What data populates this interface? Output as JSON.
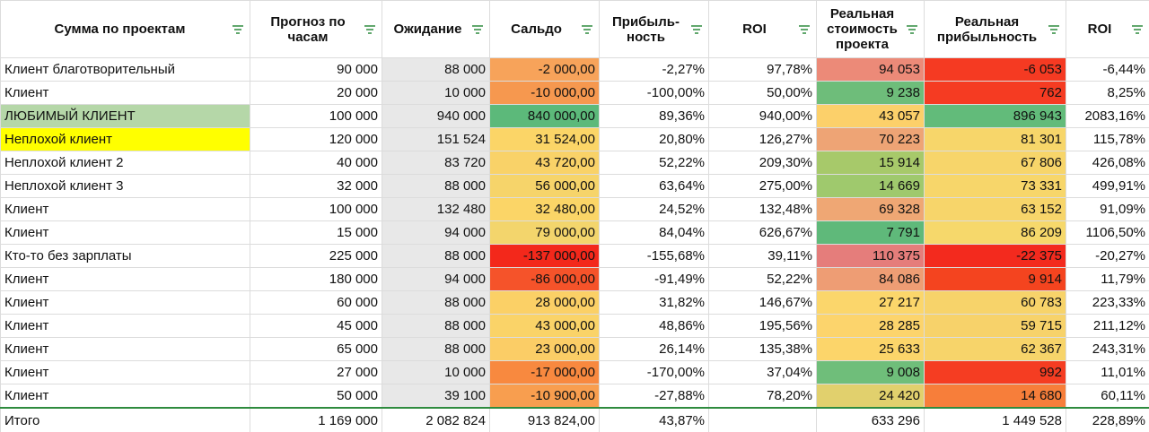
{
  "table": {
    "header": [
      "Сумма по проектам",
      "Прогноз по\nчасам",
      "Ожидание",
      "Сальдо",
      "Прибыль-\nность",
      "ROI",
      "Реальная\nстоимость\nпроекта",
      "Реальная\nприбыльность",
      "ROI"
    ],
    "rows": [
      [
        "Клиент благотворительный",
        "90 000",
        "88 000",
        "-2 000,00",
        "-2,27%",
        "97,78%",
        "94 053",
        "-6 053",
        "-6,44%"
      ],
      [
        "Клиент",
        "20 000",
        "10 000",
        "-10 000,00",
        "-100,00%",
        "50,00%",
        "9 238",
        "762",
        "8,25%"
      ],
      [
        "ЛЮБИМЫЙ КЛИЕНТ",
        "100 000",
        "940 000",
        "840 000,00",
        "89,36%",
        "940,00%",
        "43 057",
        "896 943",
        "2083,16%"
      ],
      [
        "Неплохой клиент",
        "120 000",
        "151 524",
        "31 524,00",
        "20,80%",
        "126,27%",
        "70 223",
        "81 301",
        "115,78%"
      ],
      [
        "Неплохой клиент 2",
        "40 000",
        "83 720",
        "43 720,00",
        "52,22%",
        "209,30%",
        "15 914",
        "67 806",
        "426,08%"
      ],
      [
        "Неплохой клиент 3",
        "32 000",
        "88 000",
        "56 000,00",
        "63,64%",
        "275,00%",
        "14 669",
        "73 331",
        "499,91%"
      ],
      [
        "Клиент",
        "100 000",
        "132 480",
        "32 480,00",
        "24,52%",
        "132,48%",
        "69 328",
        "63 152",
        "91,09%"
      ],
      [
        "Клиент",
        "15 000",
        "94 000",
        "79 000,00",
        "84,04%",
        "626,67%",
        "7 791",
        "86 209",
        "1106,50%"
      ],
      [
        "Кто-то без зарплаты",
        "225 000",
        "88 000",
        "-137 000,00",
        "-155,68%",
        "39,11%",
        "110 375",
        "-22 375",
        "-20,27%"
      ],
      [
        "Клиент",
        "180 000",
        "94 000",
        "-86 000,00",
        "-91,49%",
        "52,22%",
        "84 086",
        "9 914",
        "11,79%"
      ],
      [
        "Клиент",
        "60 000",
        "88 000",
        "28 000,00",
        "31,82%",
        "146,67%",
        "27 217",
        "60 783",
        "223,33%"
      ],
      [
        "Клиент",
        "45 000",
        "88 000",
        "43 000,00",
        "48,86%",
        "195,56%",
        "28 285",
        "59 715",
        "211,12%"
      ],
      [
        "Клиент",
        "65 000",
        "88 000",
        "23 000,00",
        "26,14%",
        "135,38%",
        "25 633",
        "62 367",
        "243,31%"
      ],
      [
        "Клиент",
        "27 000",
        "10 000",
        "-17 000,00",
        "-170,00%",
        "37,04%",
        "9 008",
        "992",
        "11,01%"
      ],
      [
        "Клиент",
        "50 000",
        "39 100",
        "-10 900,00",
        "-27,88%",
        "78,20%",
        "24 420",
        "14 680",
        "60,11%"
      ]
    ],
    "total": [
      "Итого",
      "1 169 000",
      "2 082 824",
      "913 824,00",
      "43,87%",
      "",
      "633 296",
      "1 449 528",
      "228,89%"
    ]
  }
}
